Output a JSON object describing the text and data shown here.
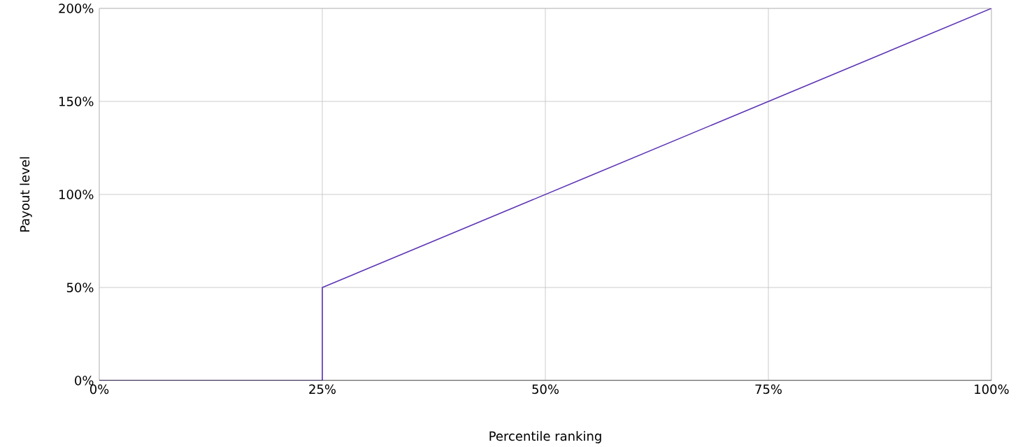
{
  "chart_data": {
    "type": "line",
    "xlabel": "Percentile ranking",
    "ylabel": "Payout level",
    "x": [
      0,
      25,
      25,
      100
    ],
    "series": [
      {
        "color": "#5c34b4",
        "values": [
          0,
          0,
          50,
          200
        ]
      }
    ],
    "xlim": [
      0,
      100
    ],
    "ylim": [
      0,
      200
    ],
    "xticks": [
      {
        "value": 0,
        "label": "0%"
      },
      {
        "value": 25,
        "label": "25%"
      },
      {
        "value": 50,
        "label": "50%"
      },
      {
        "value": 75,
        "label": "75%"
      },
      {
        "value": 100,
        "label": "100%"
      }
    ],
    "yticks": [
      {
        "value": 0,
        "label": "0%"
      },
      {
        "value": 50,
        "label": "50%"
      },
      {
        "value": 100,
        "label": "100%"
      },
      {
        "value": 150,
        "label": "150%"
      },
      {
        "value": 200,
        "label": "200%"
      }
    ],
    "grid": true,
    "marker": "none",
    "line_style": "solid"
  }
}
